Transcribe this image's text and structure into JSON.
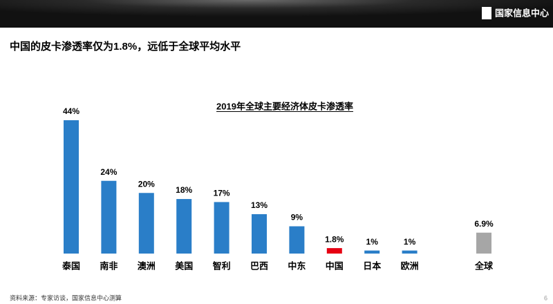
{
  "header": {
    "logo": "国家信息中心"
  },
  "heading": "中国的皮卡渗透率仅为1.8%，远低于全球平均水平",
  "chart_data": {
    "type": "bar",
    "title": "2019年全球主要经济体皮卡渗透率",
    "categories": [
      "泰国",
      "南非",
      "澳洲",
      "美国",
      "智利",
      "巴西",
      "中东",
      "中国",
      "日本",
      "欧洲",
      "全球"
    ],
    "values": [
      44,
      24,
      20,
      18,
      17,
      13,
      9,
      1.8,
      1,
      1,
      6.9
    ],
    "value_labels": [
      "44%",
      "24%",
      "20%",
      "18%",
      "17%",
      "13%",
      "9%",
      "1.8%",
      "1%",
      "1%",
      "6.9%"
    ],
    "colors": [
      "#2a7ec8",
      "#2a7ec8",
      "#2a7ec8",
      "#2a7ec8",
      "#2a7ec8",
      "#2a7ec8",
      "#2a7ec8",
      "#e60012",
      "#2a7ec8",
      "#2a7ec8",
      "#a6a6a6"
    ]
  },
  "footer": {
    "source": "资料来源：专家访谈，国家信息中心测算",
    "page": "6"
  }
}
